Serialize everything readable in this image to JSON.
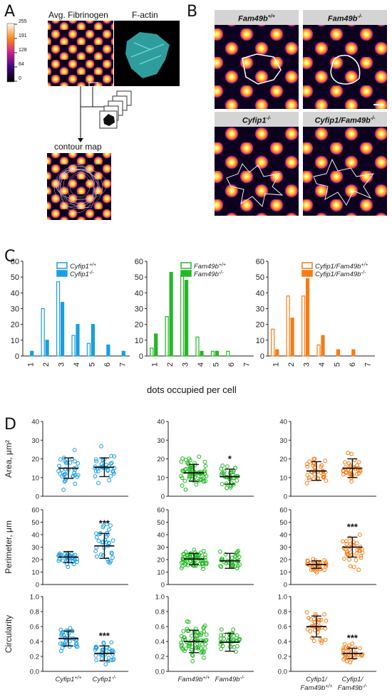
{
  "panels": {
    "A": {
      "letter": "A",
      "title_fibrinogen": "Avg. Fibrinogen",
      "title_factin": "F-actin",
      "colorbar_ticks": [
        "255",
        "191",
        "128",
        "64",
        "0"
      ],
      "contour_label": "contour map",
      "colors": {
        "factin": "#3cc4c4"
      }
    },
    "B": {
      "letter": "B",
      "headers": [
        {
          "main": "Fam49b",
          "sup": "+/+"
        },
        {
          "main": "Fam49b",
          "sup": "-/-"
        },
        {
          "main": "Cyfip1",
          "sup": "-/-"
        },
        {
          "main": "Cyfip1/Fam49b",
          "sup": "-/-"
        }
      ]
    },
    "C": {
      "letter": "C",
      "xlabel": "dots occupied per cell"
    },
    "D": {
      "letter": "D",
      "ylabels": [
        "Area, μm²",
        "Perimeter, μm",
        "Circularity"
      ]
    }
  },
  "chart_data": [
    {
      "type": "bar",
      "panel": "C1",
      "categories": [
        "1",
        "2",
        "3",
        "4",
        "5",
        "6",
        "7"
      ],
      "ylim": [
        0,
        60
      ],
      "yticks": [
        "0",
        "10",
        "20",
        "30",
        "40",
        "50",
        "60"
      ],
      "color": "#1a9ee0",
      "series": [
        {
          "name": "Cyfip1+/+",
          "values": [
            0,
            30,
            47,
            13,
            8,
            0,
            0
          ]
        },
        {
          "name": "Cyfip1-/-",
          "values": [
            3,
            10,
            34,
            20,
            20,
            7,
            3
          ]
        }
      ]
    },
    {
      "type": "bar",
      "panel": "C2",
      "categories": [
        "1",
        "2",
        "3",
        "4",
        "5",
        "6",
        "7"
      ],
      "ylim": [
        0,
        60
      ],
      "yticks": [
        "0",
        "10",
        "20",
        "30",
        "40",
        "50",
        "60"
      ],
      "color": "#25b825",
      "series": [
        {
          "name": "Fam49b+/+",
          "values": [
            5,
            25,
            51,
            12,
            3,
            3,
            0
          ]
        },
        {
          "name": "Fam49b-/-",
          "values": [
            14,
            53,
            48,
            3,
            3,
            0,
            0
          ]
        }
      ]
    },
    {
      "type": "bar",
      "panel": "C3",
      "categories": [
        "1",
        "2",
        "3",
        "4",
        "5",
        "6",
        "7"
      ],
      "ylim": [
        0,
        60
      ],
      "yticks": [
        "0",
        "10",
        "20",
        "30",
        "40",
        "50",
        "60"
      ],
      "color": "#f57c14",
      "series": [
        {
          "name": "Cyfip1/Fam49b+/+",
          "values": [
            17,
            38,
            38,
            7,
            0,
            0,
            0
          ]
        },
        {
          "name": "Cyfip1/Fam49b-/-",
          "values": [
            4,
            24,
            49,
            13,
            4,
            4,
            0
          ]
        }
      ]
    },
    {
      "type": "scatter",
      "panel": "D-area-1",
      "color": "#1a9ee0",
      "ylim": [
        0,
        40
      ],
      "yticks": [
        "0",
        "10",
        "20",
        "30",
        "40"
      ],
      "groups": [
        {
          "mean": 15,
          "sd": 5.5
        },
        {
          "mean": 15.5,
          "sd": 5
        }
      ],
      "sig": ""
    },
    {
      "type": "scatter",
      "panel": "D-area-2",
      "color": "#25b825",
      "ylim": [
        0,
        40
      ],
      "yticks": [
        "0",
        "10",
        "20",
        "30",
        "40"
      ],
      "groups": [
        {
          "mean": 12.5,
          "sd": 4.5
        },
        {
          "mean": 10.5,
          "sd": 4
        }
      ],
      "sig": "*"
    },
    {
      "type": "scatter",
      "panel": "D-area-3",
      "color": "#f57c14",
      "ylim": [
        0,
        40
      ],
      "yticks": [
        "0",
        "10",
        "20",
        "30",
        "40"
      ],
      "groups": [
        {
          "mean": 13.5,
          "sd": 5
        },
        {
          "mean": 15,
          "sd": 5
        }
      ],
      "sig": ""
    },
    {
      "type": "scatter",
      "panel": "D-perim-1",
      "color": "#1a9ee0",
      "ylim": [
        0,
        60
      ],
      "yticks": [
        "0",
        "10",
        "20",
        "30",
        "40",
        "50",
        "60"
      ],
      "groups": [
        {
          "mean": 22,
          "sd": 4.5
        },
        {
          "mean": 31,
          "sd": 10
        }
      ],
      "sig": "***"
    },
    {
      "type": "scatter",
      "panel": "D-perim-2",
      "color": "#25b825",
      "ylim": [
        0,
        60
      ],
      "yticks": [
        "0",
        "10",
        "20",
        "30",
        "40",
        "50",
        "60"
      ],
      "groups": [
        {
          "mean": 20.5,
          "sd": 4.5
        },
        {
          "mean": 19,
          "sd": 6
        }
      ],
      "sig": ""
    },
    {
      "type": "scatter",
      "panel": "D-perim-3",
      "color": "#f57c14",
      "ylim": [
        0,
        60
      ],
      "yticks": [
        "0",
        "10",
        "20",
        "30",
        "40",
        "50",
        "60"
      ],
      "groups": [
        {
          "mean": 16,
          "sd": 3
        },
        {
          "mean": 30,
          "sd": 8
        }
      ],
      "sig": "***"
    },
    {
      "type": "scatter",
      "panel": "D-circ-1",
      "color": "#1a9ee0",
      "ylim": [
        0,
        1
      ],
      "yticks": [
        "0.0",
        "0.2",
        "0.4",
        "0.6",
        "0.8",
        "1.0"
      ],
      "groups": [
        {
          "mean": 0.44,
          "sd": 0.1
        },
        {
          "mean": 0.24,
          "sd": 0.1
        }
      ],
      "sig": "***",
      "xlabels": [
        {
          "main": "Cyfip1",
          "sup": "+/+"
        },
        {
          "main": "Cyfip1",
          "sup": "-/-"
        }
      ]
    },
    {
      "type": "scatter",
      "panel": "D-circ-2",
      "color": "#25b825",
      "ylim": [
        0,
        1
      ],
      "yticks": [
        "0.0",
        "0.2",
        "0.4",
        "0.6",
        "0.8",
        "1.0"
      ],
      "groups": [
        {
          "mean": 0.4,
          "sd": 0.15
        },
        {
          "mean": 0.39,
          "sd": 0.12
        }
      ],
      "sig": "",
      "xlabels": [
        {
          "main": "Fam49b",
          "sup": "+/+"
        },
        {
          "main": "Fam49b",
          "sup": "-/-"
        }
      ]
    },
    {
      "type": "scatter",
      "panel": "D-circ-3",
      "color": "#f57c14",
      "ylim": [
        0,
        1
      ],
      "yticks": [
        "0.0",
        "0.2",
        "0.4",
        "0.6",
        "0.8",
        "1.0"
      ],
      "groups": [
        {
          "mean": 0.6,
          "sd": 0.14
        },
        {
          "mean": 0.24,
          "sd": 0.07
        }
      ],
      "sig": "***",
      "xlabels": [
        {
          "main": "Cyfip1/",
          "line2": "Fam49b",
          "sup": "+/+"
        },
        {
          "main": "Cyfip1/",
          "line2": "Fam49b",
          "sup": "-/-"
        }
      ]
    }
  ]
}
